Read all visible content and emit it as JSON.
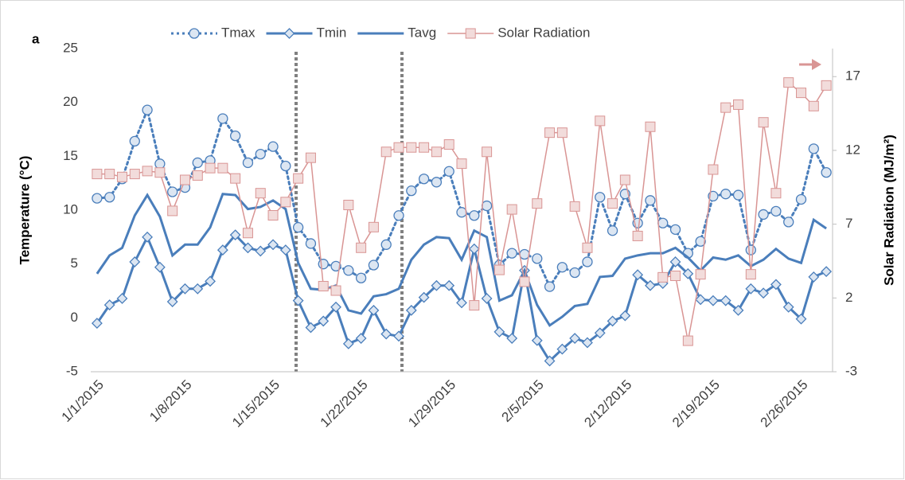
{
  "chart_data": {
    "type": "line",
    "panel_label": "a",
    "y_label": "Temperature (°C)",
    "y2_label": "Solar Radiation (MJ/m²)",
    "categories": [
      "1/1/2015",
      null,
      null,
      null,
      null,
      null,
      null,
      "1/8/2015",
      null,
      null,
      null,
      null,
      null,
      null,
      "1/15/2015",
      null,
      null,
      null,
      null,
      null,
      null,
      "1/22/2015",
      null,
      null,
      null,
      null,
      null,
      null,
      "1/29/2015",
      null,
      null,
      null,
      null,
      null,
      null,
      "2/5/2015",
      null,
      null,
      null,
      null,
      null,
      null,
      "2/12/2015",
      null,
      null,
      null,
      null,
      null,
      null,
      "2/19/2015",
      null,
      null,
      null,
      null,
      null,
      null,
      "2/26/2015",
      null,
      null
    ],
    "ylim": [
      -5,
      25
    ],
    "yticks": [
      -5,
      0,
      5,
      10,
      15,
      20,
      25
    ],
    "y2lim": [
      -3,
      18.9
    ],
    "y2ticks": [
      -3,
      2,
      7,
      12,
      17
    ],
    "series": [
      {
        "name": "Tmax",
        "color": "#4a7ebb",
        "marker": "circle",
        "line_style": "dotted",
        "values": [
          11.1,
          11.2,
          12.9,
          16.4,
          19.3,
          14.3,
          11.7,
          12.1,
          14.4,
          14.6,
          18.5,
          16.9,
          14.4,
          15.2,
          15.9,
          14.1,
          8.4,
          6.9,
          5.0,
          4.8,
          4.4,
          3.7,
          4.9,
          6.8,
          9.5,
          11.8,
          12.9,
          12.6,
          13.6,
          9.8,
          9.5,
          10.4,
          4.9,
          6.0,
          5.9,
          5.5,
          2.9,
          4.7,
          4.2,
          5.2,
          11.2,
          8.1,
          11.5,
          8.8,
          10.9,
          8.8,
          8.2,
          6.0,
          7.1,
          11.3,
          11.5,
          11.4,
          6.3,
          9.6,
          9.9,
          8.9,
          11.0,
          15.7,
          13.5
        ]
      },
      {
        "name": "Tmin",
        "color": "#4a7ebb",
        "marker": "diamond",
        "line_style": "solid",
        "values": [
          -0.5,
          1.2,
          1.8,
          5.2,
          7.5,
          4.7,
          1.5,
          2.7,
          2.7,
          3.4,
          6.3,
          7.7,
          6.5,
          6.2,
          6.8,
          6.3,
          1.6,
          -0.9,
          -0.3,
          1.0,
          -2.4,
          -1.9,
          0.7,
          -1.5,
          -1.7,
          0.7,
          1.9,
          3.0,
          3.0,
          1.4,
          6.4,
          1.8,
          -1.3,
          -1.9,
          4.4,
          -2.1,
          -4.0,
          -2.9,
          -1.9,
          -2.3,
          -1.4,
          -0.3,
          0.2,
          4.0,
          3.0,
          3.2,
          5.2,
          4.1,
          1.7,
          1.6,
          1.6,
          0.7,
          2.7,
          2.3,
          3.1,
          1.0,
          -0.1,
          3.8,
          4.3
        ]
      },
      {
        "name": "Tavg",
        "color": "#4a7ebb",
        "marker": "none",
        "line_style": "solid",
        "values": [
          4.1,
          5.8,
          6.5,
          9.5,
          11.4,
          9.4,
          5.8,
          6.8,
          6.8,
          8.4,
          11.5,
          11.4,
          10.1,
          10.3,
          10.9,
          10.1,
          5.1,
          2.7,
          2.6,
          3.0,
          0.7,
          0.4,
          2.0,
          2.2,
          2.7,
          5.4,
          6.8,
          7.5,
          7.4,
          5.4,
          8.1,
          7.5,
          1.6,
          2.1,
          4.4,
          1.2,
          -0.7,
          0.1,
          1.1,
          1.3,
          3.8,
          3.9,
          5.5,
          5.8,
          6.0,
          6.0,
          6.5,
          5.6,
          4.4,
          5.6,
          5.4,
          5.8,
          4.8,
          5.4,
          6.4,
          5.5,
          5.1,
          9.1,
          8.3
        ]
      },
      {
        "name": "Solar Radiation",
        "color": "#d99594",
        "marker": "square",
        "line_style": "solid",
        "axis": "y2",
        "values": [
          10.4,
          10.4,
          10.2,
          10.4,
          10.6,
          10.5,
          7.9,
          10.0,
          10.3,
          10.8,
          10.8,
          10.1,
          6.4,
          9.1,
          7.6,
          8.5,
          10.1,
          11.5,
          2.8,
          2.5,
          8.3,
          5.4,
          6.8,
          11.9,
          12.2,
          12.2,
          12.2,
          11.9,
          12.4,
          11.1,
          1.5,
          11.9,
          3.9,
          8.0,
          3.1,
          8.4,
          13.2,
          13.2,
          8.2,
          5.4,
          14.0,
          8.4,
          10.0,
          6.2,
          13.6,
          3.4,
          3.5,
          -0.9,
          3.6,
          10.7,
          14.9,
          15.1,
          3.6,
          13.9,
          9.1,
          16.6,
          15.9,
          15.0,
          16.4
        ]
      }
    ]
  }
}
